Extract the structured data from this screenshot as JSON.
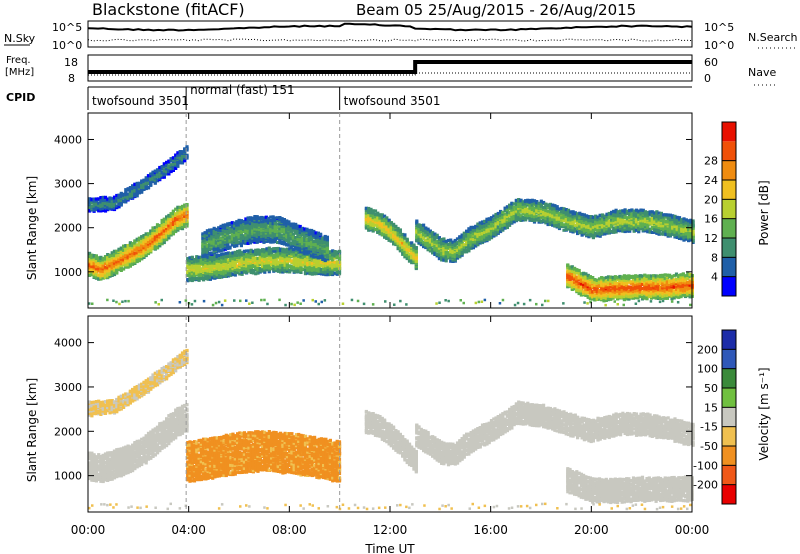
{
  "header": {
    "station": "Blackstone (fitACF)",
    "beam_dates": "Beam 05  25/Aug/2015 - 26/Aug/2015"
  },
  "panels": {
    "nsky": {
      "left_label": "N.Sky",
      "left_ticks": [
        "10^5",
        "10^0"
      ],
      "right_ticks": [
        "10^5",
        "10^0"
      ],
      "right_label": "N.Search"
    },
    "freq": {
      "left_label_1": "Freq.",
      "left_label_2": "[MHz]",
      "left_ticks": [
        "18",
        "8"
      ],
      "right_ticks": [
        "60",
        "0"
      ],
      "right_label": "Nave"
    },
    "cpid": {
      "label": "CPID",
      "segments": [
        {
          "name": "twofsound 3501",
          "start_h": 0,
          "end_h": 3.9
        },
        {
          "name": "normal (fast) 151",
          "start_h": 3.9,
          "end_h": 10
        },
        {
          "name": "twofsound 3501",
          "start_h": 10,
          "end_h": 24
        }
      ]
    }
  },
  "axes": {
    "ylabel": "Slant Range [km]",
    "xlabel": "Time UT",
    "y_ticks": [
      "1000",
      "2000",
      "3000",
      "4000"
    ],
    "x_ticks": [
      "00:00",
      "04:00",
      "08:00",
      "12:00",
      "16:00",
      "20:00",
      "00:00"
    ]
  },
  "colorbars": {
    "power": {
      "label": "Power [dB]",
      "ticks": [
        "4",
        "8",
        "12",
        "16",
        "20",
        "24",
        "28"
      ],
      "colors": [
        "#0000ff",
        "#1f5fa8",
        "#3f8f6f",
        "#5fb050",
        "#b8d030",
        "#f0c020",
        "#f08c10",
        "#f05008",
        "#e81000"
      ]
    },
    "velocity": {
      "label": "Velocity [m s⁻¹]",
      "ticks": [
        "200",
        "100",
        "50",
        "15",
        "-15",
        "-50",
        "-100",
        "-200"
      ],
      "colors": [
        "#1c2ca8",
        "#2f58b8",
        "#3a8a3a",
        "#70c040",
        "#c8c8c0",
        "#f0c050",
        "#f09020",
        "#f05818",
        "#e80000"
      ]
    }
  },
  "chart_data": [
    {
      "type": "heatmap",
      "title": "Blackstone (fitACF)  Beam 05  25/Aug/2015 - 26/Aug/2015",
      "variable": "Power",
      "xlabel": "Time UT",
      "ylabel": "Slant Range [km]",
      "xlim": [
        0,
        24
      ],
      "ylim": [
        180,
        4600
      ],
      "colorbar_label": "Power [dB]",
      "colorbar_range": [
        0,
        32
      ],
      "echo_bands": [
        {
          "t": [
            0.0,
            0.5,
            1.0,
            1.5,
            2.0,
            2.5,
            3.0,
            3.5,
            3.9
          ],
          "range_km": [
            1150,
            1050,
            1200,
            1350,
            1500,
            1700,
            1950,
            2200,
            2300
          ],
          "width_km": 450,
          "power_db": 26
        },
        {
          "t": [
            0.0,
            1.0,
            2.0,
            3.0,
            3.9
          ],
          "range_km": [
            2500,
            2550,
            2900,
            3300,
            3700
          ],
          "width_km": 250,
          "power_db": 9
        },
        {
          "t": [
            3.9,
            5.0,
            6.0,
            7.0,
            8.0,
            9.0,
            10.0
          ],
          "range_km": [
            1050,
            1100,
            1200,
            1250,
            1250,
            1200,
            1200
          ],
          "width_km": 450,
          "power_db": 18
        },
        {
          "t": [
            4.5,
            5.5,
            6.5,
            7.5,
            8.5,
            9.5
          ],
          "range_km": [
            1600,
            1800,
            1950,
            1950,
            1700,
            1500
          ],
          "width_km": 500,
          "power_db": 12
        },
        {
          "t": [
            11.0,
            11.5,
            12.0,
            12.5,
            13.0
          ],
          "range_km": [
            2200,
            2100,
            1900,
            1600,
            1300
          ],
          "width_km": 400,
          "power_db": 20
        },
        {
          "t": [
            13.0,
            13.5,
            14.0,
            14.5,
            15.0,
            16.0,
            17.0,
            18.0,
            19.0,
            20.0,
            21.0,
            22.0,
            23.0,
            24.0
          ],
          "range_km": [
            1900,
            1700,
            1500,
            1450,
            1700,
            2000,
            2400,
            2350,
            2150,
            2000,
            2150,
            2150,
            2050,
            1900
          ],
          "width_km": 400,
          "power_db": 16
        },
        {
          "t": [
            19.0,
            20.0,
            21.0,
            22.0,
            23.0,
            24.0
          ],
          "range_km": [
            900,
            600,
            620,
            650,
            650,
            700
          ],
          "width_km": 450,
          "power_db": 28
        }
      ]
    },
    {
      "type": "heatmap",
      "variable": "Velocity",
      "xlabel": "Time UT",
      "ylabel": "Slant Range [km]",
      "xlim": [
        0,
        24
      ],
      "ylim": [
        180,
        4600
      ],
      "colorbar_label": "Velocity [m s⁻¹]",
      "colorbar_range": [
        -250,
        250
      ],
      "echo_bands": [
        {
          "t": [
            0.0,
            0.5,
            1.0,
            1.5,
            2.0,
            2.5,
            3.0,
            3.5,
            3.9
          ],
          "range_km": [
            1200,
            1150,
            1250,
            1350,
            1500,
            1700,
            1950,
            2200,
            2300
          ],
          "width_km": 550,
          "velocity_ms": 0
        },
        {
          "t": [
            0.0,
            1.0,
            2.0,
            3.0,
            3.9
          ],
          "range_km": [
            2500,
            2550,
            2900,
            3300,
            3700
          ],
          "width_km": 250,
          "velocity_ms": -30
        },
        {
          "t": [
            3.9,
            5.0,
            6.0,
            7.0,
            8.0,
            9.0,
            10.0
          ],
          "range_km": [
            1300,
            1400,
            1500,
            1550,
            1500,
            1400,
            1300
          ],
          "width_km": 800,
          "velocity_ms": -90
        },
        {
          "t": [
            11.0,
            11.5,
            12.0,
            12.5,
            13.0
          ],
          "range_km": [
            2200,
            2100,
            1900,
            1600,
            1300
          ],
          "width_km": 400,
          "velocity_ms": 0
        },
        {
          "t": [
            13.0,
            13.5,
            14.0,
            14.5,
            15.0,
            16.0,
            17.0,
            18.0,
            19.0,
            20.0,
            21.0,
            22.0,
            23.0,
            24.0
          ],
          "range_km": [
            1900,
            1700,
            1500,
            1450,
            1700,
            2000,
            2400,
            2350,
            2150,
            2000,
            2150,
            2150,
            2050,
            1900
          ],
          "width_km": 400,
          "velocity_ms": 0
        },
        {
          "t": [
            19.0,
            20.0,
            21.0,
            22.0,
            23.0,
            24.0
          ],
          "range_km": [
            900,
            650,
            650,
            680,
            680,
            700
          ],
          "width_km": 450,
          "velocity_ms": 0
        }
      ]
    }
  ]
}
